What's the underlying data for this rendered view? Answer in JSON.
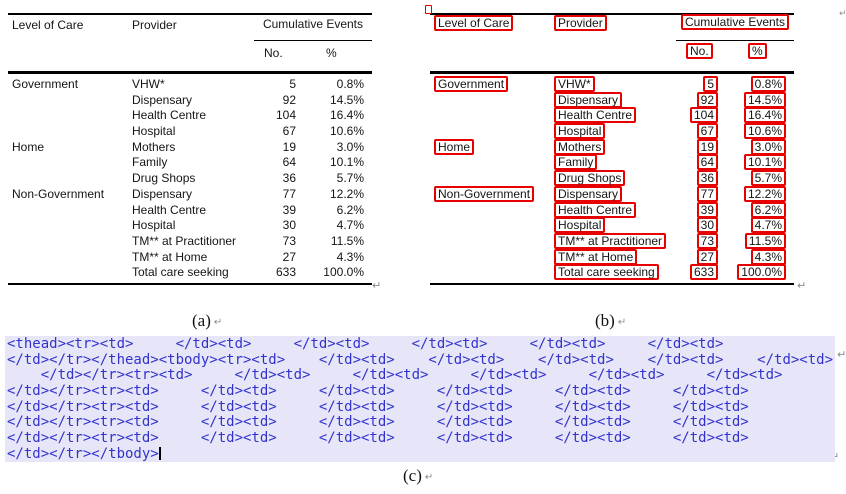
{
  "figure": {
    "captions": {
      "a": "(a)",
      "b": "(b)",
      "c": "(c)"
    },
    "return_mark": "↵"
  },
  "table": {
    "headers": {
      "level_of_care": "Level of Care",
      "provider": "Provider",
      "cumulative_events": "Cumulative Events",
      "no": "No.",
      "pct": "%"
    },
    "rows": [
      {
        "care": "Government",
        "provider": "VHW*",
        "no": "5",
        "pct": "0.8%"
      },
      {
        "care": "",
        "provider": "Dispensary",
        "no": "92",
        "pct": "14.5%"
      },
      {
        "care": "",
        "provider": "Health Centre",
        "no": "104",
        "pct": "16.4%"
      },
      {
        "care": "",
        "provider": "Hospital",
        "no": "67",
        "pct": "10.6%"
      },
      {
        "care": "Home",
        "provider": "Mothers",
        "no": "19",
        "pct": "3.0%"
      },
      {
        "care": "",
        "provider": "Family",
        "no": "64",
        "pct": "10.1%"
      },
      {
        "care": "",
        "provider": "Drug Shops",
        "no": "36",
        "pct": "5.7%"
      },
      {
        "care": "Non-Government",
        "provider": "Dispensary",
        "no": "77",
        "pct": "12.2%"
      },
      {
        "care": "",
        "provider": "Health Centre",
        "no": "39",
        "pct": "6.2%"
      },
      {
        "care": "",
        "provider": "Hospital",
        "no": "30",
        "pct": "4.7%"
      },
      {
        "care": "",
        "provider": "TM** at Practitioner",
        "no": "73",
        "pct": "11.5%"
      },
      {
        "care": "",
        "provider": "TM** at Home",
        "no": "27",
        "pct": "4.3%"
      },
      {
        "care": "",
        "provider": "Total care seeking",
        "no": "633",
        "pct": "100.0%"
      }
    ]
  },
  "code_block": {
    "lines": [
      "<thead><tr><td>     </td><td>     </td><td>     </td><td>     </td><td>     </td><td>",
      "</td></tr></thead><tbody><tr><td>    </td><td>    </td><td>    </td><td>    </td><td>    </td><td>",
      "    </td></tr><tr><td>     </td><td>     </td><td>     </td><td>     </td><td>     </td><td>",
      "</td></tr><tr><td>     </td><td>     </td><td>     </td><td>     </td><td>     </td><td>",
      "</td></tr><tr><td>     </td><td>     </td><td>     </td><td>     </td><td>     </td><td>",
      "</td></tr><tr><td>     </td><td>     </td><td>     </td><td>     </td><td>     </td><td>",
      "</td></tr><tr><td>     </td><td>     </td><td>     </td><td>     </td><td>     </td><td>",
      "</td></tr></tbody>"
    ]
  },
  "colors": {
    "detection_box_red": "#e60000",
    "code_background": "#e6e6f8",
    "code_text_blue": "#3333cc"
  }
}
